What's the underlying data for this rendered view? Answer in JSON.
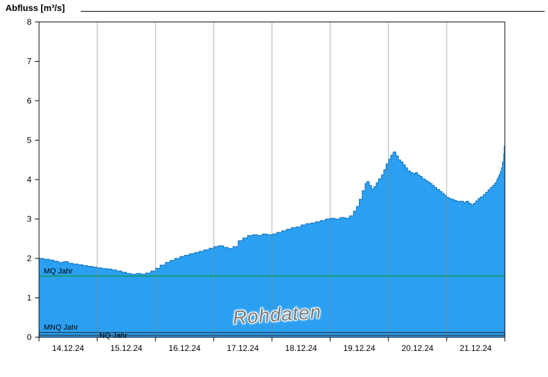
{
  "title": "Abfluss [m³/s]",
  "watermark": "Rohdaten",
  "chart_data": {
    "type": "area",
    "title": "Abfluss [m³/s]",
    "xlabel": "",
    "ylabel": "Abfluss [m³/s]",
    "ylim": [
      0,
      8
    ],
    "x_days": 8,
    "grid": "vertical-only",
    "legend_position": "none",
    "y_ticks": [
      0,
      1,
      2,
      3,
      4,
      5,
      6,
      7,
      8
    ],
    "x_tick_labels": [
      "14.12.24",
      "15.12.24",
      "16.12.24",
      "17.12.24",
      "18.12.24",
      "19.12.24",
      "20.12.24",
      "21.12.24"
    ],
    "colors": {
      "area_fill": "#2BA0F2",
      "area_stroke": "#1070C0",
      "grid": "#808080",
      "frame": "#000000",
      "axis_text": "#000000"
    },
    "reference_lines": [
      {
        "id": "mq-jahr",
        "label": "MQ Jahr",
        "value": 1.55,
        "color": "#009900",
        "label_dx": 7,
        "label_dy": -4
      },
      {
        "id": "mnq-jahr",
        "label": "MNQ Jahr",
        "value": 0.12,
        "color": "#222222",
        "label_dx": 7,
        "label_dy": -4
      },
      {
        "id": "nq-jahr",
        "label": "NQ Jahr",
        "value": 0.05,
        "color": "#222222",
        "label_dx": 88,
        "label_dy": 4
      }
    ],
    "series": [
      {
        "name": "Abfluss Rohdaten",
        "step": "after",
        "points": [
          [
            0.0,
            2.0
          ],
          [
            0.08,
            1.98
          ],
          [
            0.17,
            1.96
          ],
          [
            0.25,
            1.93
          ],
          [
            0.33,
            1.9
          ],
          [
            0.42,
            1.92
          ],
          [
            0.5,
            1.88
          ],
          [
            0.58,
            1.86
          ],
          [
            0.67,
            1.84
          ],
          [
            0.75,
            1.82
          ],
          [
            0.83,
            1.8
          ],
          [
            0.92,
            1.78
          ],
          [
            1.0,
            1.76
          ],
          [
            1.08,
            1.74
          ],
          [
            1.17,
            1.73
          ],
          [
            1.25,
            1.71
          ],
          [
            1.33,
            1.68
          ],
          [
            1.42,
            1.65
          ],
          [
            1.5,
            1.62
          ],
          [
            1.58,
            1.6
          ],
          [
            1.67,
            1.62
          ],
          [
            1.75,
            1.6
          ],
          [
            1.83,
            1.63
          ],
          [
            1.92,
            1.68
          ],
          [
            2.0,
            1.75
          ],
          [
            2.08,
            1.83
          ],
          [
            2.17,
            1.9
          ],
          [
            2.25,
            1.95
          ],
          [
            2.33,
            2.0
          ],
          [
            2.42,
            2.05
          ],
          [
            2.5,
            2.08
          ],
          [
            2.58,
            2.12
          ],
          [
            2.67,
            2.15
          ],
          [
            2.75,
            2.18
          ],
          [
            2.83,
            2.22
          ],
          [
            2.92,
            2.26
          ],
          [
            3.0,
            2.3
          ],
          [
            3.08,
            2.32
          ],
          [
            3.17,
            2.28
          ],
          [
            3.25,
            2.25
          ],
          [
            3.33,
            2.3
          ],
          [
            3.42,
            2.45
          ],
          [
            3.5,
            2.52
          ],
          [
            3.58,
            2.58
          ],
          [
            3.67,
            2.6
          ],
          [
            3.75,
            2.58
          ],
          [
            3.83,
            2.62
          ],
          [
            3.92,
            2.6
          ],
          [
            4.0,
            2.62
          ],
          [
            4.08,
            2.66
          ],
          [
            4.17,
            2.7
          ],
          [
            4.25,
            2.74
          ],
          [
            4.33,
            2.78
          ],
          [
            4.42,
            2.8
          ],
          [
            4.5,
            2.85
          ],
          [
            4.58,
            2.88
          ],
          [
            4.67,
            2.9
          ],
          [
            4.75,
            2.93
          ],
          [
            4.83,
            2.96
          ],
          [
            4.92,
            3.0
          ],
          [
            5.0,
            3.02
          ],
          [
            5.08,
            3.0
          ],
          [
            5.17,
            3.04
          ],
          [
            5.25,
            3.02
          ],
          [
            5.33,
            3.08
          ],
          [
            5.4,
            3.2
          ],
          [
            5.45,
            3.32
          ],
          [
            5.5,
            3.5
          ],
          [
            5.55,
            3.72
          ],
          [
            5.6,
            3.9
          ],
          [
            5.63,
            3.95
          ],
          [
            5.67,
            3.85
          ],
          [
            5.71,
            3.76
          ],
          [
            5.75,
            3.82
          ],
          [
            5.79,
            3.92
          ],
          [
            5.83,
            4.02
          ],
          [
            5.88,
            4.12
          ],
          [
            5.92,
            4.25
          ],
          [
            5.96,
            4.4
          ],
          [
            6.0,
            4.52
          ],
          [
            6.04,
            4.62
          ],
          [
            6.08,
            4.7
          ],
          [
            6.13,
            4.6
          ],
          [
            6.17,
            4.5
          ],
          [
            6.21,
            4.45
          ],
          [
            6.25,
            4.38
          ],
          [
            6.29,
            4.3
          ],
          [
            6.33,
            4.22
          ],
          [
            6.38,
            4.18
          ],
          [
            6.42,
            4.15
          ],
          [
            6.46,
            4.18
          ],
          [
            6.5,
            4.12
          ],
          [
            6.54,
            4.08
          ],
          [
            6.58,
            4.02
          ],
          [
            6.63,
            3.98
          ],
          [
            6.67,
            3.94
          ],
          [
            6.71,
            3.9
          ],
          [
            6.75,
            3.85
          ],
          [
            6.79,
            3.8
          ],
          [
            6.83,
            3.75
          ],
          [
            6.88,
            3.7
          ],
          [
            6.92,
            3.65
          ],
          [
            6.96,
            3.6
          ],
          [
            7.0,
            3.55
          ],
          [
            7.04,
            3.52
          ],
          [
            7.08,
            3.5
          ],
          [
            7.13,
            3.47
          ],
          [
            7.17,
            3.45
          ],
          [
            7.25,
            3.45
          ],
          [
            7.29,
            3.42
          ],
          [
            7.33,
            3.45
          ],
          [
            7.38,
            3.4
          ],
          [
            7.42,
            3.36
          ],
          [
            7.46,
            3.4
          ],
          [
            7.5,
            3.46
          ],
          [
            7.54,
            3.52
          ],
          [
            7.58,
            3.56
          ],
          [
            7.63,
            3.62
          ],
          [
            7.67,
            3.68
          ],
          [
            7.71,
            3.74
          ],
          [
            7.75,
            3.8
          ],
          [
            7.79,
            3.86
          ],
          [
            7.83,
            3.92
          ],
          [
            7.86,
            4.0
          ],
          [
            7.88,
            4.06
          ],
          [
            7.9,
            4.12
          ],
          [
            7.92,
            4.2
          ],
          [
            7.94,
            4.3
          ],
          [
            7.96,
            4.45
          ],
          [
            7.98,
            4.65
          ],
          [
            7.99,
            4.85
          ],
          [
            8.0,
            5.1
          ]
        ]
      }
    ]
  }
}
